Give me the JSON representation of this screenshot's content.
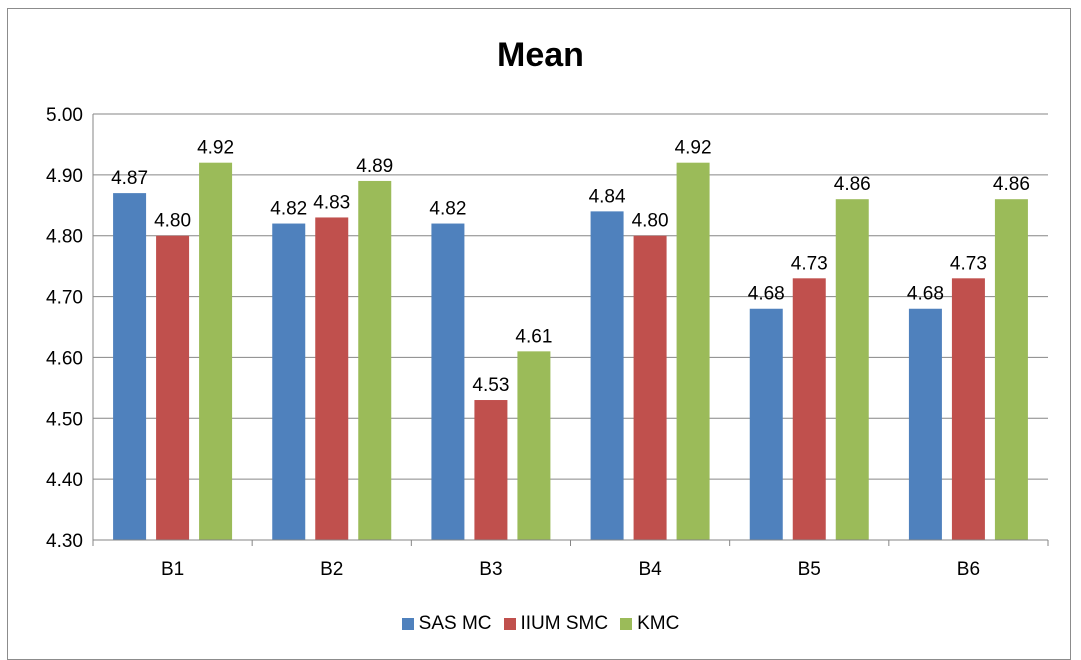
{
  "chart_data": {
    "type": "bar",
    "title": "Mean",
    "xlabel": "",
    "ylabel": "",
    "categories": [
      "B1",
      "B2",
      "B3",
      "B4",
      "B5",
      "B6"
    ],
    "series": [
      {
        "name": "SAS MC",
        "color": "#4f81bd",
        "values": [
          4.87,
          4.82,
          4.82,
          4.84,
          4.68,
          4.68
        ],
        "labels": [
          "4.87",
          "4.82",
          "4.82",
          "4.84",
          "4.68",
          "4.68"
        ]
      },
      {
        "name": "IIUM SMC",
        "color": "#c0504d",
        "values": [
          4.8,
          4.83,
          4.53,
          4.8,
          4.73,
          4.73
        ],
        "labels": [
          "4.80",
          "4.83",
          "4.53",
          "4.80",
          "4.73",
          "4.73"
        ]
      },
      {
        "name": "KMC",
        "color": "#9bbb59",
        "values": [
          4.92,
          4.89,
          4.61,
          4.92,
          4.86,
          4.86
        ],
        "labels": [
          "4.92",
          "4.89",
          "4.61",
          "4.92",
          "4.86",
          "4.86"
        ]
      }
    ],
    "ylim": [
      4.3,
      5.0
    ],
    "yticks": [
      "4.30",
      "4.40",
      "4.50",
      "4.60",
      "4.70",
      "4.80",
      "4.90",
      "5.00"
    ],
    "grid": true,
    "legend_position": "bottom"
  }
}
